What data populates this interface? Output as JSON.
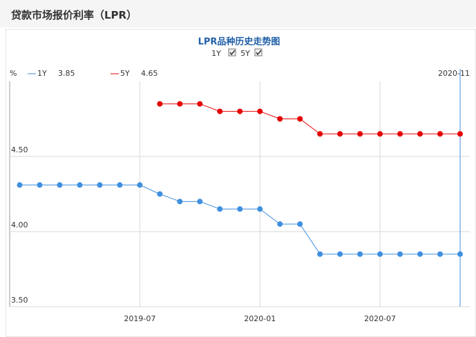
{
  "header": {
    "title": "贷款市场报价利率（LPR）"
  },
  "chart_data": {
    "type": "line",
    "title": "LPR品种历史走势图",
    "toggles": [
      "1Y",
      "5Y"
    ],
    "unit": "%",
    "cursor_label": "2020-11",
    "categories": [
      null,
      null,
      null,
      null,
      null,
      null,
      "2019-07",
      null,
      null,
      null,
      null,
      null,
      "2020-01",
      null,
      null,
      null,
      null,
      null,
      "2020-07",
      null,
      null,
      null,
      null
    ],
    "series": [
      {
        "name": "1Y",
        "color": "#3f8fdf",
        "values": [
          4.31,
          4.31,
          4.31,
          4.31,
          4.31,
          4.31,
          4.31,
          4.25,
          4.2,
          4.2,
          4.15,
          4.15,
          4.15,
          4.05,
          4.05,
          3.85,
          3.85,
          3.85,
          3.85,
          3.85,
          3.85,
          3.85,
          3.85
        ]
      },
      {
        "name": "5Y",
        "color": "#e60000",
        "values": [
          null,
          null,
          null,
          null,
          null,
          null,
          null,
          4.85,
          4.85,
          4.85,
          4.8,
          4.8,
          4.8,
          4.75,
          4.75,
          4.65,
          4.65,
          4.65,
          4.65,
          4.65,
          4.65,
          4.65,
          4.65
        ]
      }
    ],
    "ylim": [
      3.5,
      5.0
    ],
    "yticks": [
      {
        "value": 3.5,
        "label": "3.50"
      },
      {
        "value": 4.0,
        "label": "4.00"
      },
      {
        "value": 4.5,
        "label": "4.50"
      }
    ],
    "grid": true
  }
}
